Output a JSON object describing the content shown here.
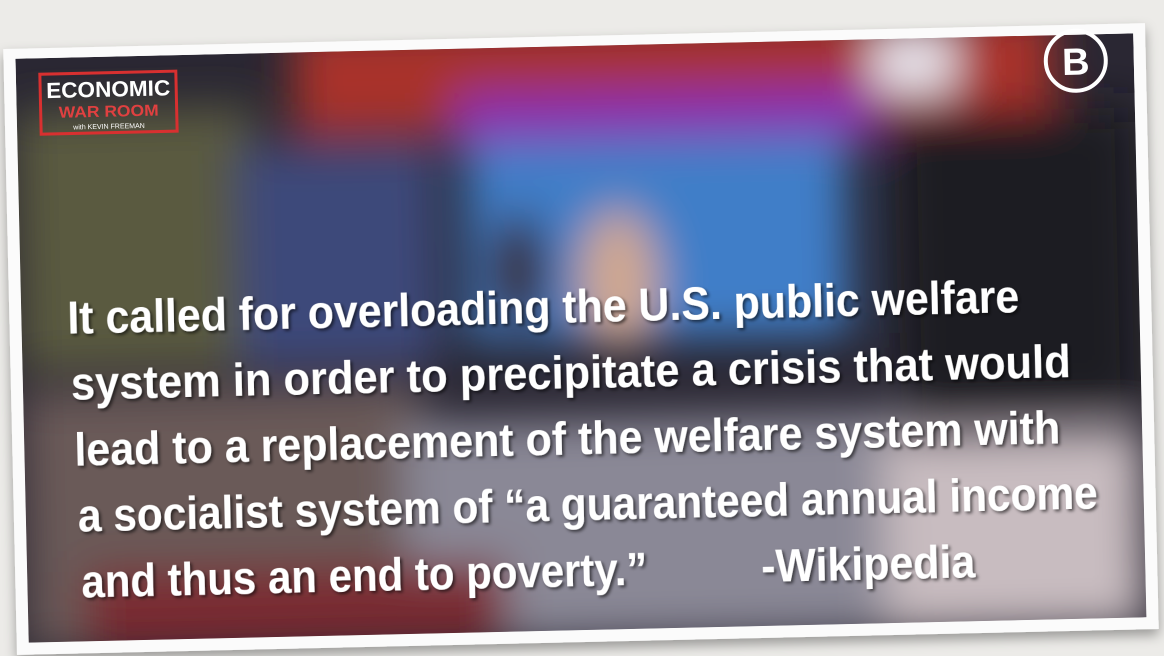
{
  "logo": {
    "title": "ECONOMIC",
    "subtitle": "WAR ROOM",
    "byline": "with KEVIN FREEMAN"
  },
  "channel_badge": "B",
  "quote": {
    "lines": [
      "It called for overloading the U.S. public welfare",
      "system in order to precipitate a crisis that would",
      "lead to a replacement of the welfare system with",
      "a socialist system of “a guaranteed annual income",
      "and thus an end to poverty.”"
    ],
    "attribution": "-Wikipedia"
  }
}
